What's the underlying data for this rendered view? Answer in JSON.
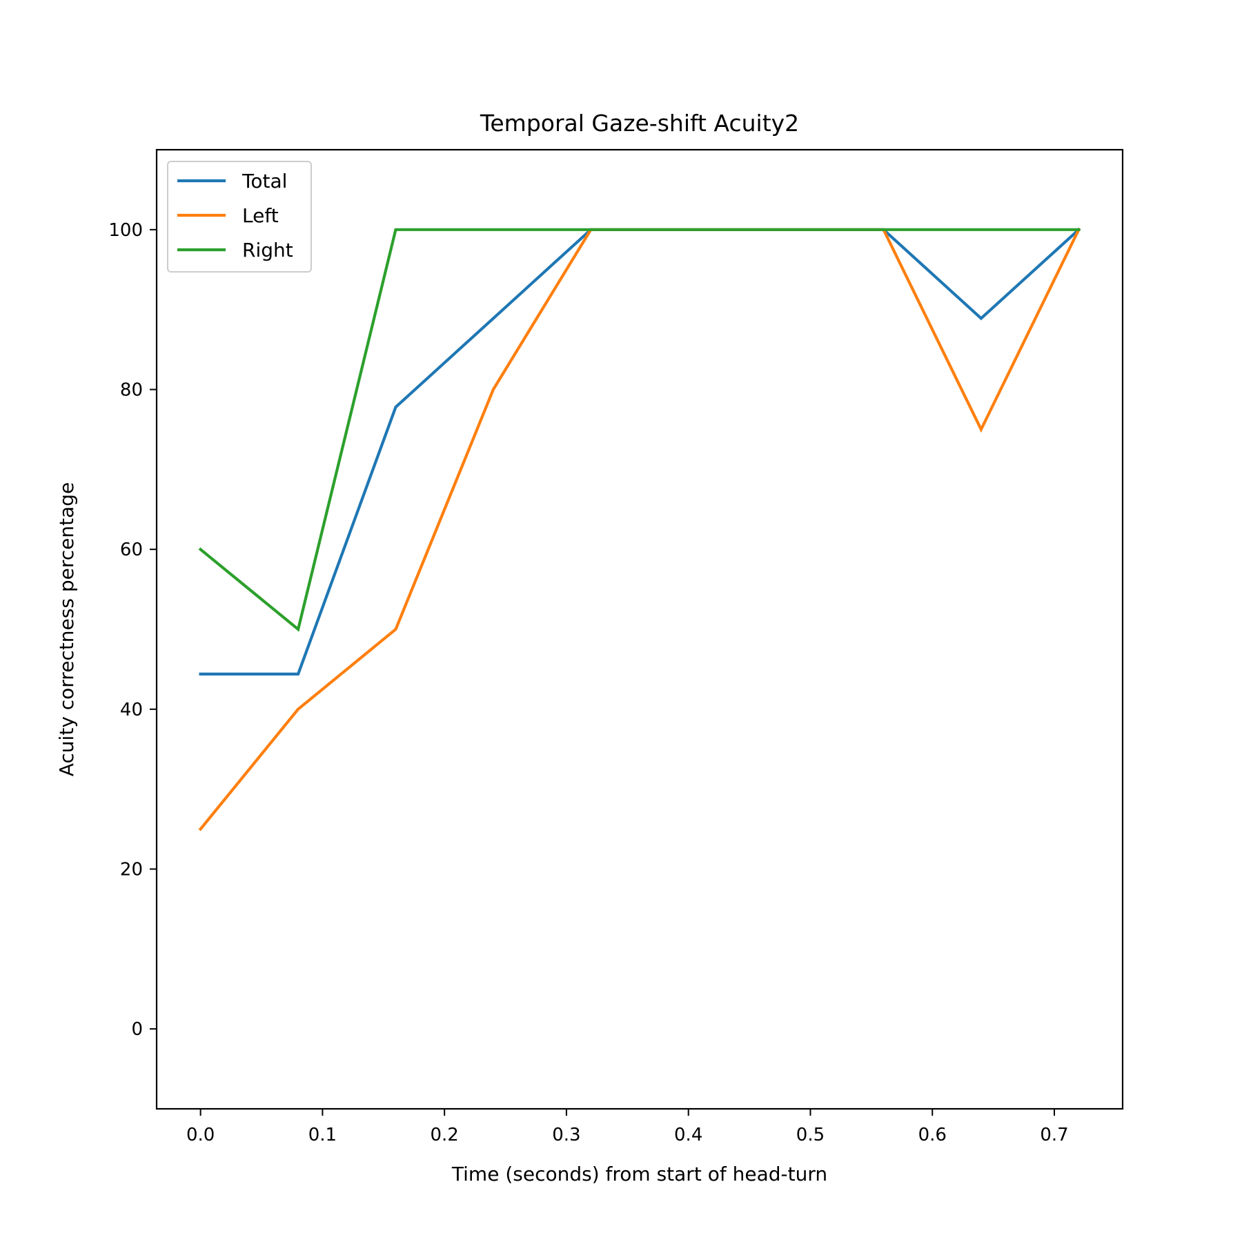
{
  "chart_data": {
    "type": "line",
    "title": "Temporal Gaze-shift Acuity2",
    "xlabel": "Time (seconds) from start of head-turn",
    "ylabel": "Acuity correctness percentage",
    "xlim": [
      -0.036,
      0.756
    ],
    "ylim": [
      -10,
      110
    ],
    "xticks": [
      0.0,
      0.1,
      0.2,
      0.3,
      0.4,
      0.5,
      0.6,
      0.7
    ],
    "xtick_labels": [
      "0.0",
      "0.1",
      "0.2",
      "0.3",
      "0.4",
      "0.5",
      "0.6",
      "0.7"
    ],
    "yticks": [
      0,
      20,
      40,
      60,
      80,
      100
    ],
    "ytick_labels": [
      "0",
      "20",
      "40",
      "60",
      "80",
      "100"
    ],
    "grid": false,
    "legend_position": "top-left",
    "x": [
      0.0,
      0.08,
      0.16,
      0.24,
      0.32,
      0.4,
      0.48,
      0.56,
      0.64,
      0.72
    ],
    "series": [
      {
        "name": "Total",
        "color": "#1f77b4",
        "values": [
          44.4,
          44.4,
          77.8,
          88.9,
          100,
          100,
          100,
          100,
          88.9,
          100
        ]
      },
      {
        "name": "Left",
        "color": "#ff7f0e",
        "values": [
          25,
          40,
          50,
          80,
          100,
          100,
          100,
          100,
          75,
          100
        ]
      },
      {
        "name": "Right",
        "color": "#2ca02c",
        "values": [
          60,
          50,
          100,
          100,
          100,
          100,
          100,
          100,
          100,
          100
        ]
      }
    ]
  }
}
